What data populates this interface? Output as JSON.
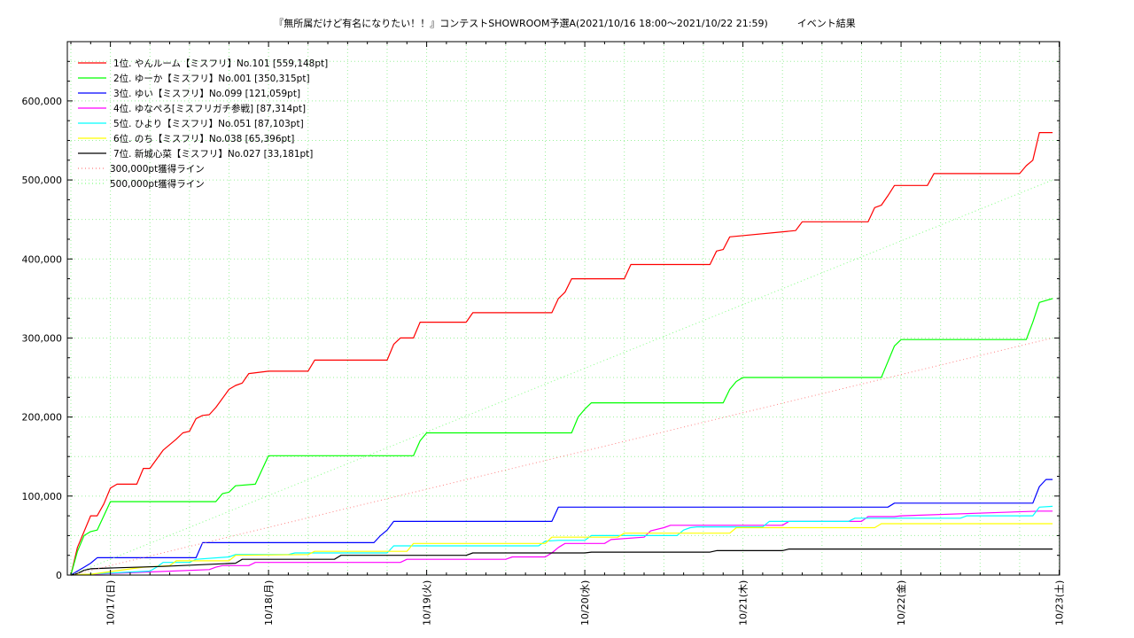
{
  "chart_data": {
    "type": "line",
    "title": "『無所属だけど有名になりたい！！』コンテストSHOWROOM予選A(2021/10/16 18:00～2021/10/22 21:59)　　　イベント結果",
    "xlabel": "",
    "ylabel": "",
    "x_axis": "hours since 2021/10/16 18:00",
    "xlim": [
      0,
      149
    ],
    "ylim": [
      0,
      675000
    ],
    "x_tick_labels": [
      {
        "x": 6,
        "label": "10/17(日)"
      },
      {
        "x": 30,
        "label": "10/18(月)"
      },
      {
        "x": 54,
        "label": "10/19(火)"
      },
      {
        "x": 78,
        "label": "10/20(水)"
      },
      {
        "x": 102,
        "label": "10/21(木)"
      },
      {
        "x": 126,
        "label": "10/22(金)"
      },
      {
        "x": 150,
        "label": "10/23(土)"
      }
    ],
    "y_ticks": [
      0,
      100000,
      200000,
      300000,
      400000,
      500000,
      600000
    ],
    "y_tick_labels": [
      "0",
      "100,000",
      "200,000",
      "300,000",
      "400,000",
      "500,000",
      "600,000"
    ],
    "grid": true,
    "legend_position": "top-left",
    "series": [
      {
        "name": "1位. やんルーム【ミスフリ】No.101 [559,148pt]",
        "color": "#ff0000",
        "x": [
          0,
          1,
          2,
          3,
          4,
          5,
          6,
          7,
          10,
          11,
          12,
          14,
          16,
          17,
          18,
          19,
          20,
          21,
          22,
          24,
          25,
          26,
          27,
          30,
          36,
          37,
          48,
          49,
          50,
          52,
          53,
          60,
          61,
          73,
          74,
          75,
          76,
          84,
          85,
          97,
          98,
          99,
          100,
          110,
          111,
          121,
          122,
          123,
          124,
          125,
          130,
          131,
          144,
          145,
          146,
          147,
          149
        ],
        "y": [
          0,
          35000,
          55000,
          75000,
          75000,
          90000,
          110000,
          115000,
          115000,
          135000,
          135000,
          158000,
          172000,
          180000,
          182000,
          198000,
          202000,
          203000,
          212000,
          235000,
          240000,
          243000,
          255000,
          258000,
          258000,
          272000,
          272000,
          292000,
          300000,
          300000,
          320000,
          320000,
          332000,
          332000,
          350000,
          358000,
          375000,
          375000,
          393000,
          393000,
          410000,
          412000,
          428000,
          436000,
          447000,
          447000,
          465000,
          468000,
          480000,
          493000,
          493000,
          508000,
          508000,
          518000,
          525000,
          560000,
          560000
        ]
      },
      {
        "name": "2位. ゆーか【ミスフリ】No.001 [350,315pt]",
        "color": "#00ff00",
        "x": [
          0,
          1,
          2,
          3,
          4,
          5,
          6,
          22,
          23,
          24,
          25,
          28,
          30,
          52,
          53,
          54,
          76,
          77,
          78,
          79,
          99,
          100,
          101,
          102,
          123,
          124,
          125,
          126,
          145,
          146,
          147,
          149
        ],
        "y": [
          0,
          30000,
          50000,
          55000,
          57000,
          75000,
          93000,
          93000,
          103000,
          105000,
          113000,
          115000,
          151000,
          151000,
          170000,
          180000,
          180000,
          200000,
          210000,
          218000,
          218000,
          235000,
          245000,
          250000,
          250000,
          270000,
          290000,
          298000,
          298000,
          320000,
          345000,
          350000
        ]
      },
      {
        "name": "3位. ゆい【ミスフリ】No.099 [121,059pt]",
        "color": "#0000ff",
        "x": [
          0,
          1,
          2,
          3,
          4,
          19,
          20,
          46,
          47,
          48,
          49,
          73,
          74,
          124,
          125,
          146,
          147,
          148,
          149
        ],
        "y": [
          0,
          5000,
          10000,
          15000,
          22000,
          22000,
          41000,
          41000,
          50000,
          57000,
          68000,
          68000,
          86000,
          86000,
          91000,
          91000,
          112000,
          121000,
          121000
        ]
      },
      {
        "name": "4位. ゆなぺろ[ミスフリガチ参戦] [87,314pt]",
        "color": "#ff00ff",
        "x": [
          0,
          21,
          22,
          23,
          27,
          28,
          50,
          51,
          66,
          67,
          72,
          73,
          74,
          75,
          81,
          82,
          87,
          88,
          90,
          91,
          108,
          109,
          120,
          121,
          125,
          126,
          147,
          149
        ],
        "y": [
          0,
          7000,
          10000,
          12000,
          12000,
          16000,
          16000,
          20000,
          20000,
          23000,
          23000,
          28000,
          35000,
          40000,
          40000,
          45000,
          48000,
          56000,
          60000,
          63000,
          63000,
          68000,
          68000,
          74000,
          74000,
          75000,
          81000,
          81000
        ]
      },
      {
        "name": "5位. ひより【ミスフリ】No.051 [87,103pt]",
        "color": "#00ffff",
        "x": [
          0,
          12,
          13,
          14,
          18,
          19,
          24,
          25,
          33,
          34,
          48,
          49,
          71,
          72,
          74,
          78,
          79,
          92,
          93,
          94,
          95,
          105,
          106,
          118,
          119,
          135,
          136,
          146,
          147,
          149
        ],
        "y": [
          0,
          5000,
          10000,
          16000,
          16000,
          20000,
          23000,
          26000,
          26000,
          28000,
          28000,
          37000,
          37000,
          43000,
          44000,
          44000,
          50000,
          50000,
          57000,
          60000,
          61000,
          61000,
          68000,
          68000,
          72000,
          72000,
          75000,
          75000,
          86000,
          87000
        ]
      },
      {
        "name": "6位. のち【ミスフリ】No.038 [65,396pt]",
        "color": "#ffff00",
        "x": [
          0,
          2,
          3,
          10,
          11,
          15,
          16,
          24,
          25,
          36,
          37,
          51,
          52,
          72,
          73,
          83,
          84,
          100,
          101,
          122,
          123,
          149
        ],
        "y": [
          0,
          1000,
          1000,
          9000,
          10000,
          12000,
          18000,
          18000,
          25000,
          26000,
          30000,
          30000,
          40000,
          40000,
          48000,
          48000,
          53000,
          53000,
          60000,
          60000,
          65000,
          65000
        ]
      },
      {
        "name": "7位. 新城心菜【ミスフリ】No.027 [33,181pt]",
        "color": "#000000",
        "x": [
          0,
          1,
          2,
          3,
          6,
          14,
          25,
          26,
          40,
          41,
          60,
          61,
          78,
          79,
          97,
          98,
          108,
          109,
          149
        ],
        "y": [
          0,
          2000,
          6000,
          8000,
          9000,
          11000,
          15000,
          20000,
          20000,
          25000,
          25000,
          28000,
          28000,
          29000,
          29000,
          31000,
          31000,
          33000,
          33000
        ]
      },
      {
        "name": "300,000pt獲得ライン",
        "color": "#ff8080",
        "dashed": true,
        "x": [
          0,
          149
        ],
        "y": [
          0,
          300000
        ]
      },
      {
        "name": "500,000pt獲得ライン",
        "color": "#80ff80",
        "dashed": true,
        "x": [
          0,
          149
        ],
        "y": [
          0,
          500000
        ]
      }
    ]
  }
}
